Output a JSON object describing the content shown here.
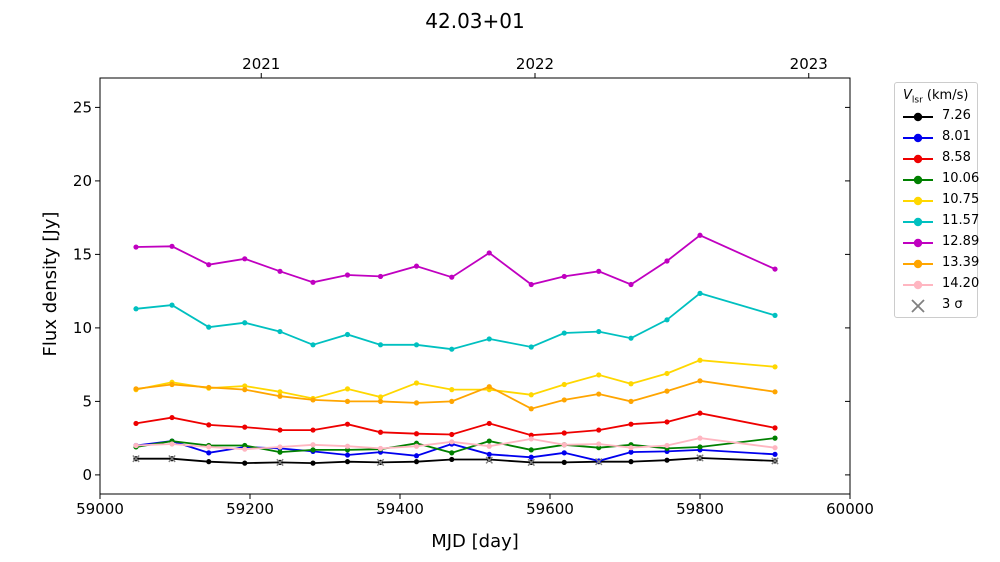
{
  "chart_data": {
    "type": "line",
    "title": "42.03+01",
    "xlabel": "MJD [day]",
    "ylabel": "Flux density [Jy]",
    "xlim": [
      59000,
      60000
    ],
    "ylim": [
      -1.3,
      27
    ],
    "xticks": [
      59000,
      59200,
      59400,
      59600,
      59800,
      60000
    ],
    "yticks": [
      0,
      5,
      10,
      15,
      20,
      25
    ],
    "top_axis": {
      "ticks": [
        {
          "label": "2021",
          "mjd": 59215
        },
        {
          "label": "2022",
          "mjd": 59580
        },
        {
          "label": "2023",
          "mjd": 59945
        }
      ]
    },
    "grid": false,
    "legend_position": "outside-right",
    "legend_title_main": "V",
    "legend_title_sub": "lsr",
    "legend_title_unit": " (km/s)",
    "x": [
      59048,
      59096,
      59145,
      59193,
      59240,
      59284,
      59330,
      59374,
      59422,
      59469,
      59519,
      59575,
      59619,
      59665,
      59708,
      59756,
      59800,
      59900
    ],
    "series": [
      {
        "name": "7.26",
        "color": "#000000",
        "values": [
          1.1,
          1.1,
          0.9,
          0.8,
          0.85,
          0.8,
          0.9,
          0.85,
          0.9,
          1.05,
          1.05,
          0.85,
          0.85,
          0.9,
          0.9,
          1.0,
          1.15,
          0.95
        ]
      },
      {
        "name": "8.01",
        "color": "#0000ee",
        "values": [
          2.0,
          2.3,
          1.5,
          1.9,
          1.8,
          1.6,
          1.35,
          1.55,
          1.3,
          2.1,
          1.4,
          1.2,
          1.5,
          0.95,
          1.55,
          1.6,
          1.7,
          1.4
        ]
      },
      {
        "name": "8.58",
        "color": "#ee0000",
        "values": [
          3.5,
          3.9,
          3.4,
          3.25,
          3.05,
          3.05,
          3.45,
          2.9,
          2.8,
          2.75,
          3.5,
          2.7,
          2.85,
          3.05,
          3.45,
          3.6,
          4.2,
          3.2
        ]
      },
      {
        "name": "10.06",
        "color": "#008000",
        "values": [
          1.9,
          2.3,
          2.0,
          2.0,
          1.55,
          1.7,
          1.7,
          1.75,
          2.15,
          1.5,
          2.3,
          1.7,
          2.05,
          1.85,
          2.05,
          1.8,
          1.9,
          2.5
        ]
      },
      {
        "name": "10.75",
        "color": "#ffd700",
        "values": [
          5.8,
          6.3,
          5.9,
          6.05,
          5.65,
          5.2,
          5.85,
          5.3,
          6.25,
          5.8,
          5.8,
          5.45,
          6.15,
          6.8,
          6.2,
          6.9,
          7.8,
          7.35
        ]
      },
      {
        "name": "11.57",
        "color": "#00c0c0",
        "values": [
          11.3,
          11.55,
          10.05,
          10.35,
          9.75,
          8.85,
          9.55,
          8.85,
          8.85,
          8.55,
          9.25,
          8.7,
          9.65,
          9.75,
          9.3,
          10.55,
          12.35,
          10.85
        ]
      },
      {
        "name": "12.89",
        "color": "#c000c0",
        "values": [
          15.5,
          15.55,
          14.3,
          14.7,
          13.85,
          13.1,
          13.6,
          13.5,
          14.2,
          13.45,
          15.1,
          12.95,
          13.5,
          13.85,
          12.95,
          14.55,
          16.3,
          14.0
        ]
      },
      {
        "name": "13.39",
        "color": "#ffa500",
        "values": [
          5.85,
          6.15,
          5.95,
          5.8,
          5.35,
          5.1,
          5.0,
          5.0,
          4.9,
          5.0,
          6.0,
          4.5,
          5.1,
          5.5,
          5.0,
          5.7,
          6.4,
          5.65
        ]
      },
      {
        "name": "14.20",
        "color": "#ffb6c1",
        "values": [
          2.0,
          2.1,
          1.9,
          1.75,
          1.9,
          2.05,
          1.95,
          1.8,
          1.95,
          2.25,
          1.95,
          2.45,
          2.05,
          2.1,
          1.85,
          2.0,
          2.5,
          1.85
        ]
      }
    ],
    "upper_limit_label": "3 σ",
    "upper_limits": [
      {
        "x": 59048,
        "y": 1.1
      },
      {
        "x": 59096,
        "y": 1.1
      },
      {
        "x": 59240,
        "y": 0.85
      },
      {
        "x": 59374,
        "y": 0.85
      },
      {
        "x": 59519,
        "y": 1.0
      },
      {
        "x": 59575,
        "y": 0.85
      },
      {
        "x": 59665,
        "y": 0.9
      },
      {
        "x": 59800,
        "y": 1.15
      },
      {
        "x": 59900,
        "y": 0.95
      }
    ]
  }
}
